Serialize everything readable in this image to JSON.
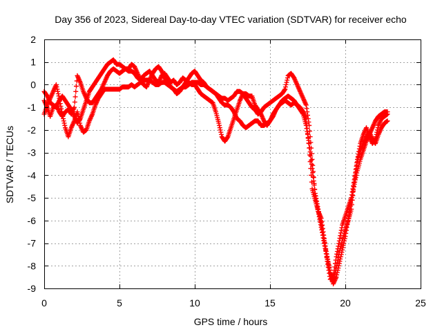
{
  "chart_data": {
    "type": "scatter",
    "title": "Day 356 of 2023, Sidereal Day-to-day VTEC variation (SDTVAR) for receiver echo",
    "xlabel": "GPS time / hours",
    "ylabel": "SDTVAR / TECUs",
    "xlim": [
      0,
      25
    ],
    "ylim": [
      -9,
      2
    ],
    "xticks": [
      "0",
      "5",
      "10",
      "15",
      "20",
      "25"
    ],
    "yticks": [
      "2",
      "1",
      "0",
      "-1",
      "-2",
      "-3",
      "-4",
      "-5",
      "-6",
      "-7",
      "-8",
      "-9"
    ],
    "grid": true,
    "marker": "plus",
    "color": "#ff0000",
    "series": [
      {
        "x": [
          0.0,
          0.2,
          0.4,
          0.6,
          0.8,
          1.0,
          1.2,
          1.4,
          1.6,
          1.8,
          2.0,
          2.2,
          2.4,
          2.6,
          2.8,
          3.0,
          3.2,
          3.4,
          3.6,
          3.8,
          4.0,
          4.2,
          4.4,
          4.6,
          4.8,
          5.0,
          5.2,
          5.4,
          5.6,
          5.8,
          6.0,
          6.2,
          6.4,
          6.6,
          6.8,
          7.0,
          7.2,
          7.4,
          7.6,
          7.8,
          8.0,
          8.2,
          8.4,
          8.6,
          8.8,
          9.0,
          9.2,
          9.4,
          9.6,
          9.8,
          10.0,
          10.2,
          10.4,
          10.6,
          10.8,
          11.0,
          11.2,
          11.4,
          11.6,
          11.8,
          12.0,
          12.2,
          12.4,
          12.6,
          12.8,
          13.0,
          13.2,
          13.4,
          13.6,
          13.8,
          14.0,
          14.2,
          14.4,
          14.6,
          14.8,
          15.0,
          15.2,
          15.4,
          15.6,
          15.8,
          16.0,
          16.2,
          16.4,
          16.6,
          16.8,
          17.0,
          17.2,
          17.4,
          17.6,
          17.8,
          18.0,
          18.2,
          18.4,
          18.6,
          18.8,
          19.0,
          19.2,
          19.4,
          19.6,
          19.8,
          20.0,
          20.2,
          20.4,
          20.6,
          20.8,
          21.0,
          21.2,
          21.4,
          21.6,
          21.8,
          22.0,
          22.2,
          22.4,
          22.6,
          22.8
        ],
        "y": [
          -1.3,
          -0.9,
          -0.6,
          -0.3,
          0.0,
          -0.6,
          -1.3,
          -1.9,
          -2.3,
          -1.9,
          -1.6,
          -1.2,
          -1.8,
          -2.1,
          -2.0,
          -1.6,
          -1.3,
          -0.9,
          -0.6,
          -0.4,
          -0.2,
          -0.2,
          -0.2,
          -0.2,
          -0.2,
          -0.2,
          -0.1,
          -0.1,
          -0.1,
          0.0,
          -0.1,
          0.0,
          0.1,
          0.2,
          0.2,
          0.2,
          0.1,
          0.0,
          0.0,
          0.1,
          0.1,
          0.0,
          -0.1,
          -0.2,
          -0.3,
          -0.2,
          -0.1,
          -0.1,
          0.0,
          0.1,
          0.1,
          0.1,
          0.0,
          0.0,
          -0.1,
          -0.2,
          -0.3,
          -0.4,
          -0.6,
          -0.8,
          -0.9,
          -0.9,
          -1.0,
          -1.2,
          -1.5,
          -1.6,
          -1.8,
          -1.9,
          -1.8,
          -1.7,
          -1.6,
          -1.6,
          -1.8,
          -1.8,
          -1.7,
          -1.6,
          -1.3,
          -1.1,
          -0.9,
          -0.8,
          -0.7,
          -0.8,
          -0.9,
          -0.8,
          -0.9,
          -1.0,
          -1.2,
          -1.5,
          -2.8,
          -4.6,
          -5.1,
          -5.6,
          -5.9,
          -6.8,
          -7.8,
          -8.6,
          -8.5,
          -7.6,
          -6.9,
          -6.2,
          -5.8,
          -5.4,
          -5.0,
          -4.2,
          -3.3,
          -2.6,
          -2.2,
          -1.9,
          -2.3,
          -2.6,
          -2.4,
          -1.8,
          -1.5,
          -1.4,
          -1.3
        ]
      },
      {
        "x": [
          0.0,
          0.2,
          0.4,
          0.6,
          0.8,
          1.0,
          1.2,
          1.4,
          1.6,
          1.8,
          2.0,
          2.2,
          2.4,
          2.6,
          2.8,
          3.0,
          3.2,
          3.4,
          3.6,
          3.8,
          4.0,
          4.2,
          4.4,
          4.6,
          4.8,
          5.0,
          5.2,
          5.4,
          5.6,
          5.8,
          6.0,
          6.2,
          6.4,
          6.6,
          6.8,
          7.0,
          7.2,
          7.4,
          7.6,
          7.8,
          8.0,
          8.2,
          8.4,
          8.6,
          8.8,
          9.0,
          9.2,
          9.4,
          9.6,
          9.8,
          10.0,
          10.2,
          10.4,
          10.6,
          10.8,
          11.0,
          11.2,
          11.4,
          11.6,
          11.8,
          12.0,
          12.2,
          12.4,
          12.6,
          12.8,
          13.0,
          13.2,
          13.4,
          13.6,
          13.8,
          14.0,
          14.2,
          14.4,
          14.6,
          14.8,
          15.0,
          15.2,
          15.4,
          15.6,
          15.8,
          16.0,
          16.2,
          16.4,
          16.6,
          16.8,
          17.0,
          17.2,
          17.4,
          17.6,
          17.8,
          18.0,
          18.2,
          18.4,
          18.6,
          18.8,
          19.0,
          19.2,
          19.4,
          19.6,
          19.8,
          20.0,
          20.2,
          20.4,
          20.6,
          20.8,
          21.0,
          21.2,
          21.4,
          21.6,
          21.8,
          22.0,
          22.2,
          22.4,
          22.6,
          22.8
        ],
        "y": [
          -0.7,
          -1.0,
          -1.4,
          -1.0,
          -0.9,
          -1.2,
          -1.4,
          -1.2,
          -1.1,
          -1.3,
          -1.0,
          0.4,
          0.1,
          -0.3,
          -0.6,
          -0.8,
          -0.8,
          -0.6,
          -0.4,
          -0.2,
          0.1,
          0.4,
          0.6,
          0.7,
          0.6,
          0.5,
          0.6,
          0.7,
          0.6,
          0.6,
          0.5,
          0.3,
          0.2,
          0.4,
          0.5,
          0.6,
          0.4,
          0.2,
          0.1,
          0.4,
          0.5,
          0.3,
          0.1,
          0.2,
          0.0,
          0.1,
          0.3,
          0.2,
          0.1,
          0.0,
          0.0,
          -0.2,
          -0.4,
          -0.5,
          -0.6,
          -0.7,
          -0.8,
          -1.2,
          -1.7,
          -2.3,
          -2.5,
          -2.3,
          -1.9,
          -1.5,
          -1.1,
          -0.7,
          -0.4,
          -0.4,
          -0.5,
          -0.5,
          -0.9,
          -1.1,
          -1.3,
          -1.6,
          -1.8,
          -1.6,
          -1.4,
          -1.1,
          -0.9,
          -0.7,
          -0.6,
          -0.5,
          -0.6,
          -0.7,
          -0.9,
          -1.1,
          -1.3,
          -1.8,
          -2.6,
          -3.7,
          -4.8,
          -5.5,
          -6.1,
          -6.9,
          -7.6,
          -8.3,
          -8.7,
          -8.1,
          -7.4,
          -6.9,
          -6.4,
          -6.0,
          -5.5,
          -4.3,
          -3.4,
          -2.9,
          -2.6,
          -2.3,
          -2.1,
          -2.4,
          -2.6,
          -2.2,
          -1.9,
          -1.7,
          -1.6
        ]
      },
      {
        "x": [
          0.0,
          0.2,
          0.4,
          0.6,
          0.8,
          1.0,
          1.2,
          1.4,
          1.6,
          1.8,
          2.0,
          2.2,
          2.4,
          2.6,
          2.8,
          3.0,
          3.2,
          3.4,
          3.6,
          3.8,
          4.0,
          4.2,
          4.4,
          4.6,
          4.8,
          5.0,
          5.2,
          5.4,
          5.6,
          5.8,
          6.0,
          6.2,
          6.4,
          6.6,
          6.8,
          7.0,
          7.2,
          7.4,
          7.6,
          7.8,
          8.0,
          8.2,
          8.4,
          8.6,
          8.8,
          9.0,
          9.2,
          9.4,
          9.6,
          9.8,
          10.0,
          10.2,
          10.4,
          10.6,
          10.8,
          11.0,
          11.2,
          11.4,
          11.6,
          11.8,
          12.0,
          12.2,
          12.4,
          12.6,
          12.8,
          13.0,
          13.2,
          13.4,
          13.6,
          13.8,
          14.0,
          14.2,
          14.4,
          14.6,
          14.8,
          15.0,
          15.2,
          15.4,
          15.6,
          15.8,
          16.0,
          16.2,
          16.4,
          16.6,
          16.8,
          17.0,
          17.2,
          17.4,
          17.6,
          17.8,
          18.0,
          18.2,
          18.4,
          18.6,
          18.8,
          19.0,
          19.2,
          19.4,
          19.6,
          19.8,
          20.0,
          20.2,
          20.4,
          20.6,
          20.8,
          21.0,
          21.2,
          21.4,
          21.6,
          21.8,
          22.0,
          22.2,
          22.4,
          22.6,
          22.8
        ],
        "y": [
          -0.3,
          -0.5,
          -0.8,
          -0.9,
          -1.0,
          -0.7,
          -0.5,
          -0.7,
          -0.9,
          -1.1,
          -1.4,
          -1.7,
          -1.5,
          -1.1,
          -0.7,
          -0.3,
          -0.1,
          0.1,
          0.3,
          0.5,
          0.7,
          0.9,
          1.0,
          1.1,
          0.9,
          0.9,
          0.8,
          0.7,
          0.7,
          0.9,
          0.8,
          0.5,
          0.2,
          0.0,
          -0.1,
          0.2,
          0.5,
          0.7,
          0.8,
          0.6,
          0.3,
          0.1,
          -0.1,
          -0.2,
          -0.4,
          -0.3,
          -0.1,
          0.1,
          0.3,
          0.5,
          0.6,
          0.4,
          0.2,
          0.1,
          -0.1,
          -0.2,
          -0.3,
          -0.4,
          -0.5,
          -0.6,
          -0.6,
          -0.7,
          -0.6,
          -0.5,
          -0.3,
          -0.3,
          -0.4,
          -0.6,
          -0.8,
          -1.0,
          -1.1,
          -1.3,
          -1.2,
          -1.0,
          -0.9,
          -0.8,
          -0.7,
          -0.6,
          -0.5,
          -0.4,
          -0.2,
          0.4,
          0.5,
          0.3,
          0.0,
          -0.3,
          -0.6,
          -0.9,
          -1.8,
          -3.3,
          -4.9,
          -5.6,
          -6.3,
          -7.0,
          -7.7,
          -8.3,
          -8.8,
          -8.5,
          -7.9,
          -7.3,
          -6.7,
          -5.9,
          -5.1,
          -4.4,
          -3.8,
          -3.3,
          -2.9,
          -2.5,
          -2.2,
          -1.9,
          -1.6,
          -1.4,
          -1.3,
          -1.2,
          -1.2
        ]
      }
    ]
  }
}
